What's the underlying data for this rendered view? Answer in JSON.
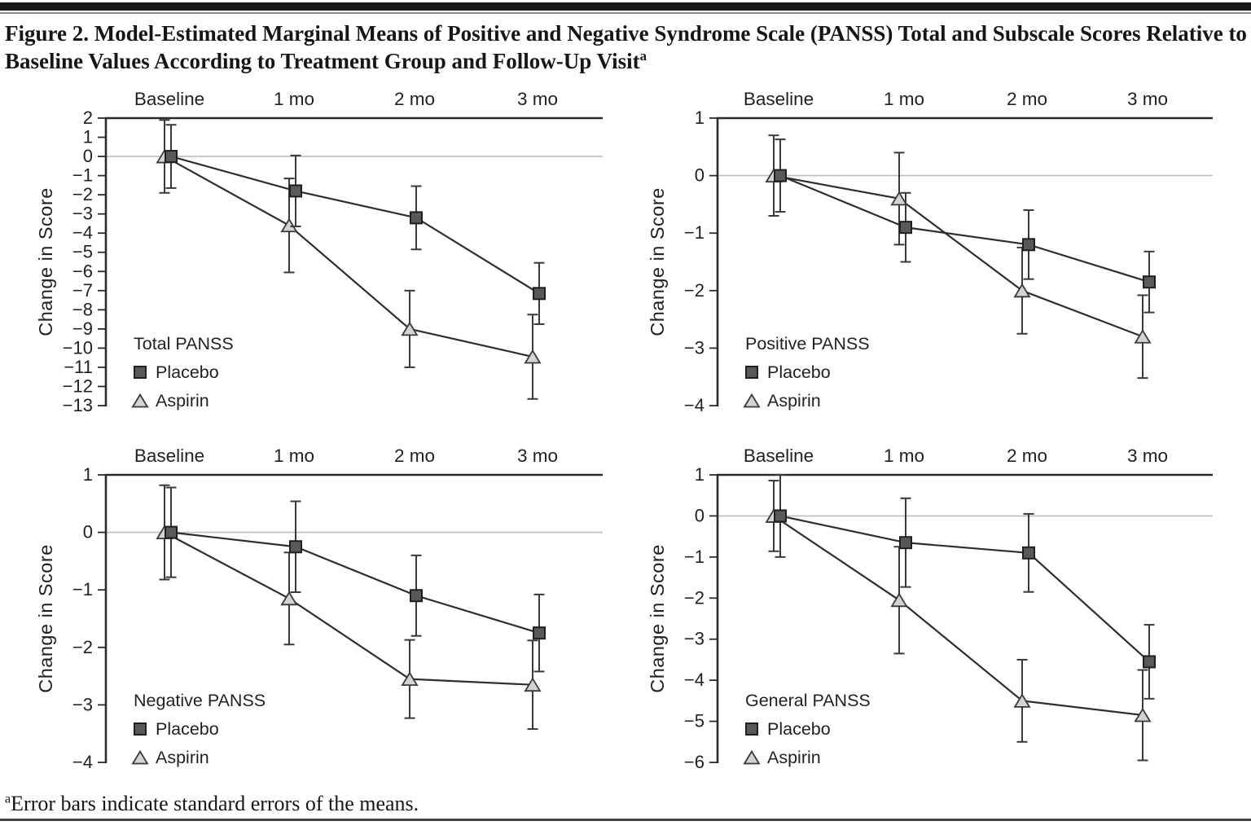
{
  "page": {
    "title_line1": "Figure 2. Model-Estimated Marginal Means of Positive and Negative Syndrome Scale (PANSS) Total and Subscale Scores Relative to",
    "title_line2": "Baseline Values According to Treatment Group and Follow-Up Visit",
    "title_superscript": "a",
    "footnote_superscript": "a",
    "footnote": "Error bars indicate standard errors of the means."
  },
  "colors": {
    "axis": "#2b2b2d",
    "line": "#2e2e30",
    "error_bar": "#39393b",
    "zero_line": "#bcbec0",
    "text": "#231f20",
    "placebo_fill": "#58595b",
    "placebo_stroke": "#1f1f21",
    "aspirin_fill": "#d2d3d5",
    "aspirin_stroke": "#39393b"
  },
  "chart_data": [
    {
      "type": "line",
      "title": "Total PANSS",
      "ylabel": "Change in Score",
      "categories": [
        "Baseline",
        "1 mo",
        "2 mo",
        "3 mo"
      ],
      "ylim": [
        -13,
        2
      ],
      "yticks": [
        2,
        1,
        0,
        -1,
        -2,
        -3,
        -4,
        -5,
        -6,
        -7,
        -8,
        -9,
        -10,
        -11,
        -12,
        -13
      ],
      "zero_line": true,
      "legend_position": "lower-left",
      "series": [
        {
          "name": "Placebo",
          "marker": "square",
          "values": [
            0,
            -1.8,
            -3.2,
            -7.15
          ],
          "stderr": [
            1.65,
            1.85,
            1.65,
            1.6
          ]
        },
        {
          "name": "Aspirin",
          "marker": "triangle",
          "values": [
            0,
            -3.6,
            -9.0,
            -10.45
          ],
          "stderr": [
            1.9,
            2.45,
            2.0,
            2.2
          ]
        }
      ]
    },
    {
      "type": "line",
      "title": "Positive PANSS",
      "ylabel": "Change in Score",
      "categories": [
        "Baseline",
        "1 mo",
        "2 mo",
        "3 mo"
      ],
      "ylim": [
        -4,
        1
      ],
      "yticks": [
        1,
        0,
        -1,
        -2,
        -3,
        -4
      ],
      "zero_line": true,
      "legend_position": "lower-left",
      "series": [
        {
          "name": "Placebo",
          "marker": "square",
          "values": [
            0,
            -0.9,
            -1.2,
            -1.85
          ],
          "stderr": [
            0.63,
            0.6,
            0.6,
            0.53
          ]
        },
        {
          "name": "Aspirin",
          "marker": "triangle",
          "values": [
            0,
            -0.4,
            -2.0,
            -2.8
          ],
          "stderr": [
            0.7,
            0.8,
            0.75,
            0.72
          ]
        }
      ]
    },
    {
      "type": "line",
      "title": "Negative PANSS",
      "ylabel": "Change in Score",
      "categories": [
        "Baseline",
        "1 mo",
        "2 mo",
        "3 mo"
      ],
      "ylim": [
        -4,
        1
      ],
      "yticks": [
        1,
        0,
        -1,
        -2,
        -3,
        -4
      ],
      "zero_line": true,
      "legend_position": "lower-left",
      "series": [
        {
          "name": "Placebo",
          "marker": "square",
          "values": [
            0,
            -0.25,
            -1.1,
            -1.75
          ],
          "stderr": [
            0.78,
            0.79,
            0.7,
            0.67
          ]
        },
        {
          "name": "Aspirin",
          "marker": "triangle",
          "values": [
            0,
            -1.15,
            -2.55,
            -2.65
          ],
          "stderr": [
            0.82,
            0.8,
            0.68,
            0.77
          ]
        }
      ]
    },
    {
      "type": "line",
      "title": "General PANSS",
      "ylabel": "Change in Score",
      "categories": [
        "Baseline",
        "1 mo",
        "2 mo",
        "3 mo"
      ],
      "ylim": [
        -6,
        1
      ],
      "yticks": [
        1,
        0,
        -1,
        -2,
        -3,
        -4,
        -5,
        -6
      ],
      "zero_line": true,
      "legend_position": "lower-left",
      "series": [
        {
          "name": "Placebo",
          "marker": "square",
          "values": [
            0,
            -0.65,
            -0.9,
            -3.55
          ],
          "stderr": [
            1.0,
            1.08,
            0.95,
            0.9
          ]
        },
        {
          "name": "Aspirin",
          "marker": "triangle",
          "values": [
            0,
            -2.05,
            -4.5,
            -4.85
          ],
          "stderr": [
            0.86,
            1.3,
            1.0,
            1.1
          ]
        }
      ]
    }
  ]
}
